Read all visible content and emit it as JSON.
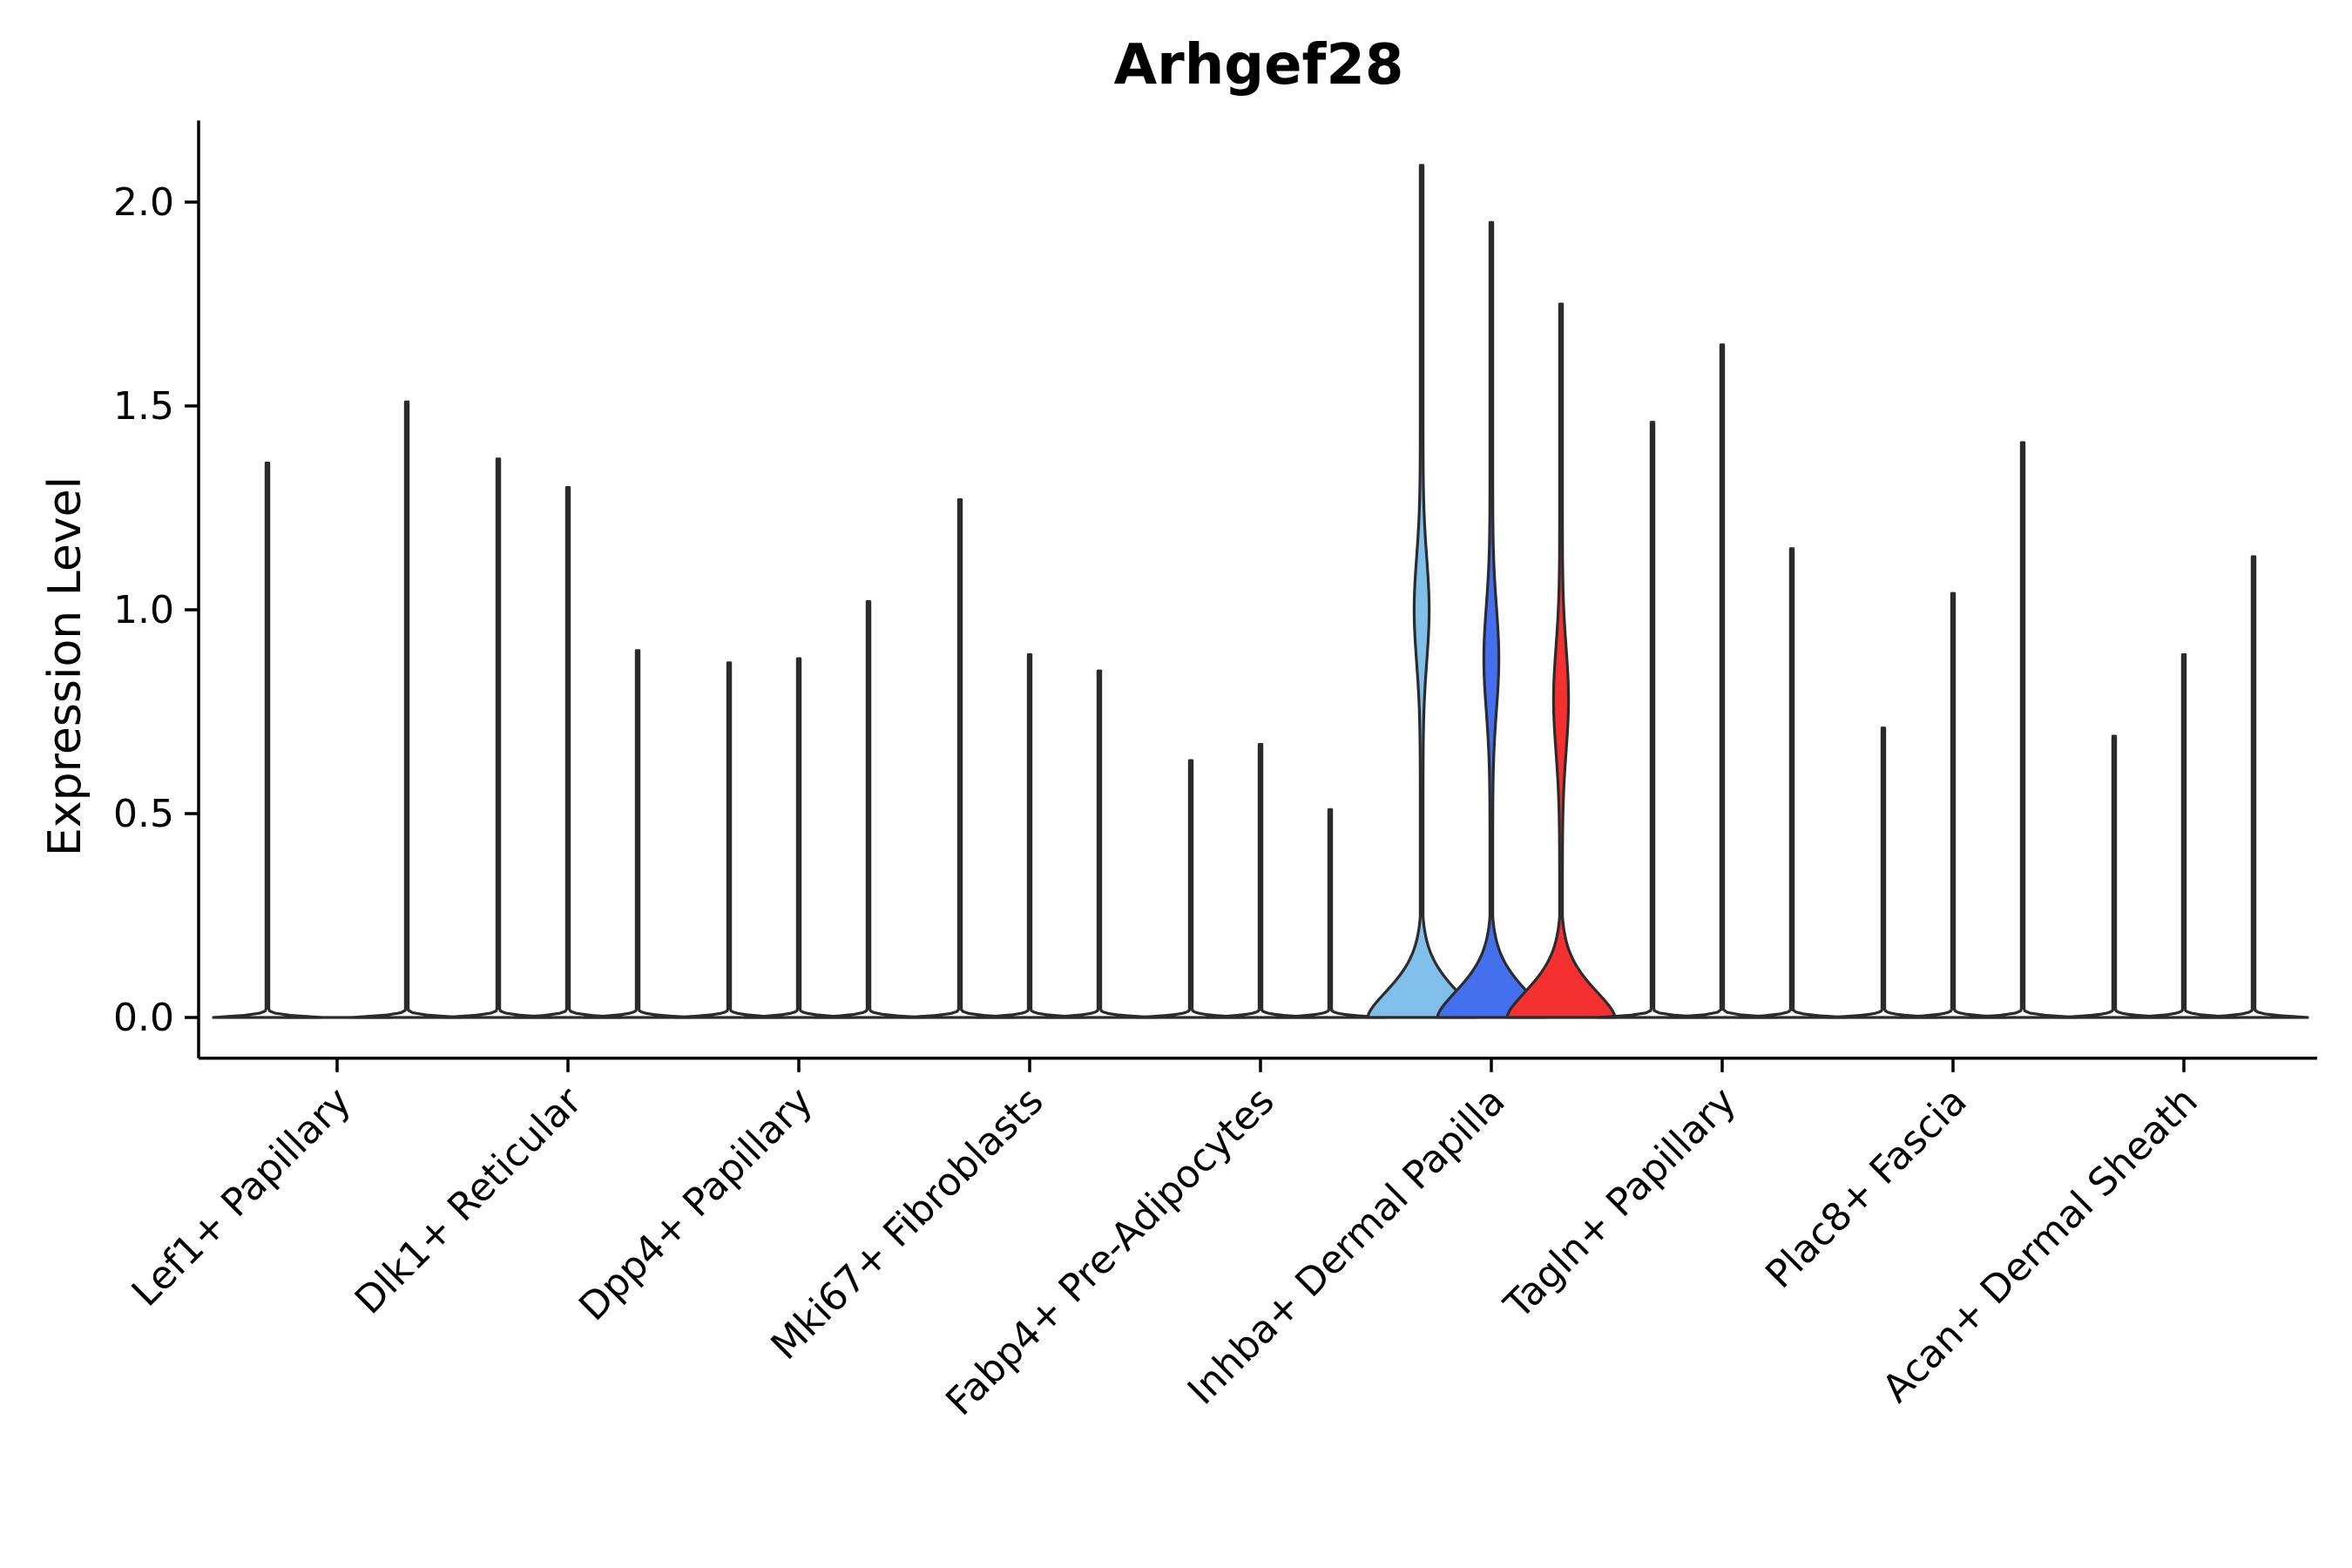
{
  "chart_data": {
    "type": "violin",
    "title": "Arhgef28",
    "xlabel": "",
    "ylabel": "Expression Level",
    "ylim": [
      -0.1,
      2.2
    ],
    "yticks": [
      0.0,
      0.5,
      1.0,
      1.5,
      2.0
    ],
    "ytick_labels": [
      "0.0",
      "0.5",
      "1.0",
      "1.5",
      "2.0"
    ],
    "categories": [
      "Lef1+ Papillary",
      "Dlk1+ Reticular",
      "Dpp4+ Papillary",
      "Mki67+ Fibroblasts",
      "Fabp4+ Pre-Adipocytes",
      "Inhba+ Dermal Papilla",
      "Tagln+ Papillary",
      "Plac8+ Fascia",
      "Acan+ Dermal Sheath"
    ],
    "groups_per_category": 3,
    "max_values": [
      [
        1.36,
        0.0,
        1.51
      ],
      [
        1.37,
        1.3,
        0.9
      ],
      [
        0.87,
        0.88,
        1.02
      ],
      [
        1.27,
        0.89,
        0.85
      ],
      [
        0.63,
        0.67,
        0.51
      ],
      [
        2.09,
        1.95,
        1.75
      ],
      [
        1.46,
        1.65,
        1.15
      ],
      [
        0.71,
        1.04,
        1.41
      ],
      [
        0.69,
        0.89,
        1.13
      ]
    ],
    "highlighted": {
      "category": "Inhba+ Dermal Papilla",
      "colors": [
        "#7fbfea",
        "#4470ee",
        "#f53030"
      ],
      "density_modes": [
        [
          0.0,
          1.0
        ],
        [
          0.0,
          0.88
        ],
        [
          0.0,
          0.78
        ]
      ]
    },
    "default_fill": "#ffffff",
    "line_color": "#2b2b2b"
  }
}
